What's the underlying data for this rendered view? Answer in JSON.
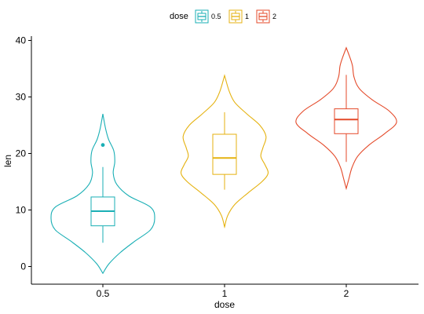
{
  "chart_data": {
    "type": "violin",
    "xlabel": "dose",
    "ylabel": "len",
    "categories": [
      "0.5",
      "1",
      "2"
    ],
    "ylim": [
      -2,
      40
    ],
    "yticks": [
      0,
      10,
      20,
      30,
      40
    ],
    "legend": {
      "title": "dose",
      "position": "top",
      "entries": [
        "0.5",
        "1",
        "2"
      ]
    },
    "grid": false,
    "series": [
      {
        "name": "0.5",
        "color": "#1AAFB5",
        "box": {
          "min": 4.2,
          "q1": 7.2,
          "median": 9.8,
          "q3": 12.3,
          "max": 17.6
        },
        "outliers": [
          21.5
        ],
        "density": [
          [
            -1.2,
            0.0
          ],
          [
            0.5,
            0.12
          ],
          [
            2.5,
            0.34
          ],
          [
            4.5,
            0.62
          ],
          [
            6.5,
            0.92
          ],
          [
            8.5,
            1.0
          ],
          [
            10.5,
            0.92
          ],
          [
            12.5,
            0.5
          ],
          [
            14.5,
            0.27
          ],
          [
            16.5,
            0.2
          ],
          [
            18.5,
            0.23
          ],
          [
            20.5,
            0.21
          ],
          [
            22.5,
            0.11
          ],
          [
            24.5,
            0.05
          ],
          [
            27.0,
            0.0
          ]
        ]
      },
      {
        "name": "1",
        "color": "#E5B210",
        "box": {
          "min": 13.6,
          "q1": 16.3,
          "median": 19.2,
          "q3": 23.4,
          "max": 27.3
        },
        "outliers": [],
        "density": [
          [
            7.0,
            0.0
          ],
          [
            9.0,
            0.06
          ],
          [
            11.0,
            0.2
          ],
          [
            13.0,
            0.45
          ],
          [
            15.0,
            0.72
          ],
          [
            16.5,
            0.84
          ],
          [
            18.0,
            0.78
          ],
          [
            19.5,
            0.7
          ],
          [
            21.0,
            0.74
          ],
          [
            23.0,
            0.8
          ],
          [
            25.0,
            0.68
          ],
          [
            27.0,
            0.43
          ],
          [
            29.0,
            0.2
          ],
          [
            31.0,
            0.09
          ],
          [
            33.8,
            0.0
          ]
        ]
      },
      {
        "name": "2",
        "color": "#E44A2A",
        "box": {
          "min": 18.5,
          "q1": 23.5,
          "median": 26.0,
          "q3": 27.9,
          "max": 33.9
        },
        "outliers": [],
        "density": [
          [
            13.8,
            0.0
          ],
          [
            15.5,
            0.05
          ],
          [
            17.5,
            0.11
          ],
          [
            19.5,
            0.22
          ],
          [
            21.5,
            0.44
          ],
          [
            23.5,
            0.74
          ],
          [
            25.5,
            0.97
          ],
          [
            27.5,
            0.83
          ],
          [
            29.5,
            0.5
          ],
          [
            31.5,
            0.25
          ],
          [
            33.5,
            0.15
          ],
          [
            35.5,
            0.12
          ],
          [
            37.0,
            0.07
          ],
          [
            38.7,
            0.0
          ]
        ]
      }
    ]
  }
}
